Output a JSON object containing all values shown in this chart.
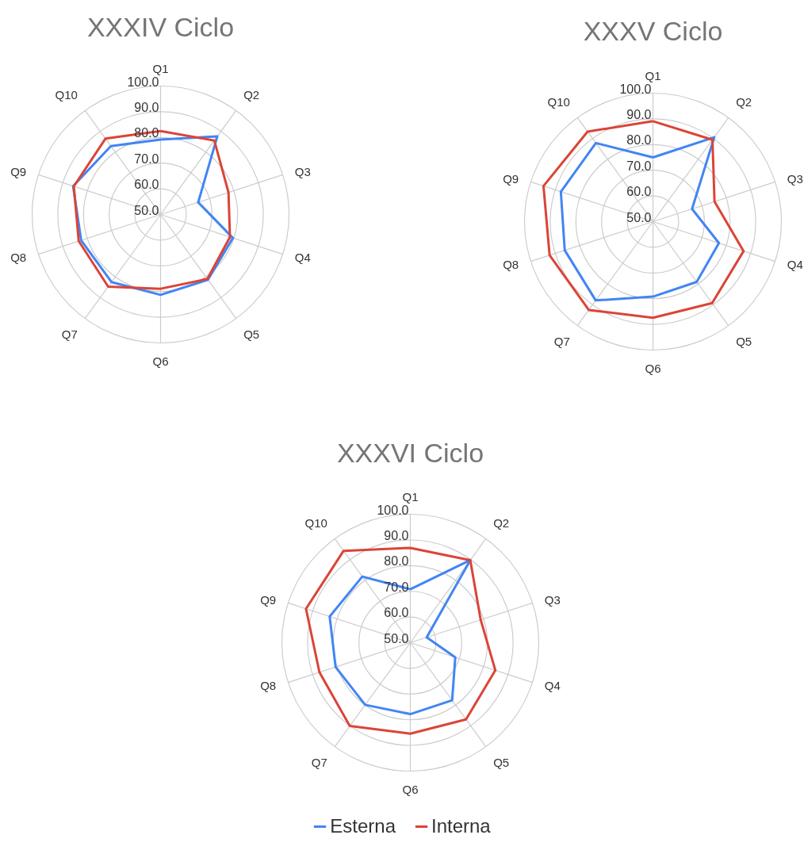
{
  "chart_data": [
    {
      "type": "radar",
      "title": "XXXIV Ciclo",
      "categories": [
        "Q1",
        "Q2",
        "Q3",
        "Q4",
        "Q5",
        "Q6",
        "Q7",
        "Q8",
        "Q9",
        "Q10"
      ],
      "ylim": [
        50,
        100
      ],
      "yticks": [
        {
          "value": 50,
          "label": "50.0"
        },
        {
          "value": 60,
          "label": "60.0"
        },
        {
          "value": 70,
          "label": "70.0"
        },
        {
          "value": 80,
          "label": "80.0"
        },
        {
          "value": 90,
          "label": "90.0"
        },
        {
          "value": 100,
          "label": "100.0"
        }
      ],
      "grid": true,
      "legend": false,
      "series": [
        {
          "color": "#4285f4",
          "values": [
            79.2,
            87.6,
            65.4,
            79.6,
            81.4,
            81.3,
            82.5,
            82.5,
            85.8,
            82.9
          ]
        },
        {
          "color": "#db4437",
          "values": [
            82.5,
            85.6,
            77.8,
            78.4,
            81.0,
            78.9,
            84.7,
            83.5,
            85.5,
            86.5
          ]
        }
      ]
    },
    {
      "type": "radar",
      "title": "XXXV Ciclo",
      "categories": [
        "Q1",
        "Q2",
        "Q3",
        "Q4",
        "Q5",
        "Q6",
        "Q7",
        "Q8",
        "Q9",
        "Q10"
      ],
      "ylim": [
        50,
        100
      ],
      "yticks": [
        {
          "value": 50,
          "label": "50.0"
        },
        {
          "value": 60,
          "label": "60.0"
        },
        {
          "value": 70,
          "label": "70.0"
        },
        {
          "value": 80,
          "label": "80.0"
        },
        {
          "value": 90,
          "label": "90.0"
        },
        {
          "value": 100,
          "label": "100.0"
        }
      ],
      "grid": true,
      "legend": false,
      "series": [
        {
          "color": "#4285f4",
          "values": [
            75.0,
            90.6,
            66.0,
            77.0,
            79.0,
            79.2,
            87.9,
            86.1,
            87.7,
            87.8
          ]
        },
        {
          "color": "#db4437",
          "values": [
            89.1,
            89.4,
            75.2,
            87.1,
            89.2,
            87.4,
            92.5,
            92.3,
            94.8,
            93.3
          ]
        }
      ]
    },
    {
      "type": "radar",
      "title": "XXXVI Ciclo",
      "categories": [
        "Q1",
        "Q2",
        "Q3",
        "Q4",
        "Q5",
        "Q6",
        "Q7",
        "Q8",
        "Q9",
        "Q10"
      ],
      "ylim": [
        50,
        100
      ],
      "yticks": [
        {
          "value": 50,
          "label": "50.0"
        },
        {
          "value": 60,
          "label": "60.0"
        },
        {
          "value": 70,
          "label": "70.0"
        },
        {
          "value": 80,
          "label": "80.0"
        },
        {
          "value": 90,
          "label": "90.0"
        },
        {
          "value": 100,
          "label": "100.0"
        }
      ],
      "grid": true,
      "legend": "bottom",
      "series": [
        {
          "name": "Esterna",
          "color": "#4285f4",
          "values": [
            70.8,
            89.7,
            56.7,
            68.4,
            77.7,
            77.8,
            79.9,
            80.6,
            83.0,
            81.8
          ]
        },
        {
          "name": "Interna",
          "color": "#db4437",
          "values": [
            86.9,
            89.7,
            78.8,
            84.8,
            86.9,
            85.4,
            90.1,
            87.2,
            92.7,
            94.2
          ]
        }
      ]
    }
  ]
}
